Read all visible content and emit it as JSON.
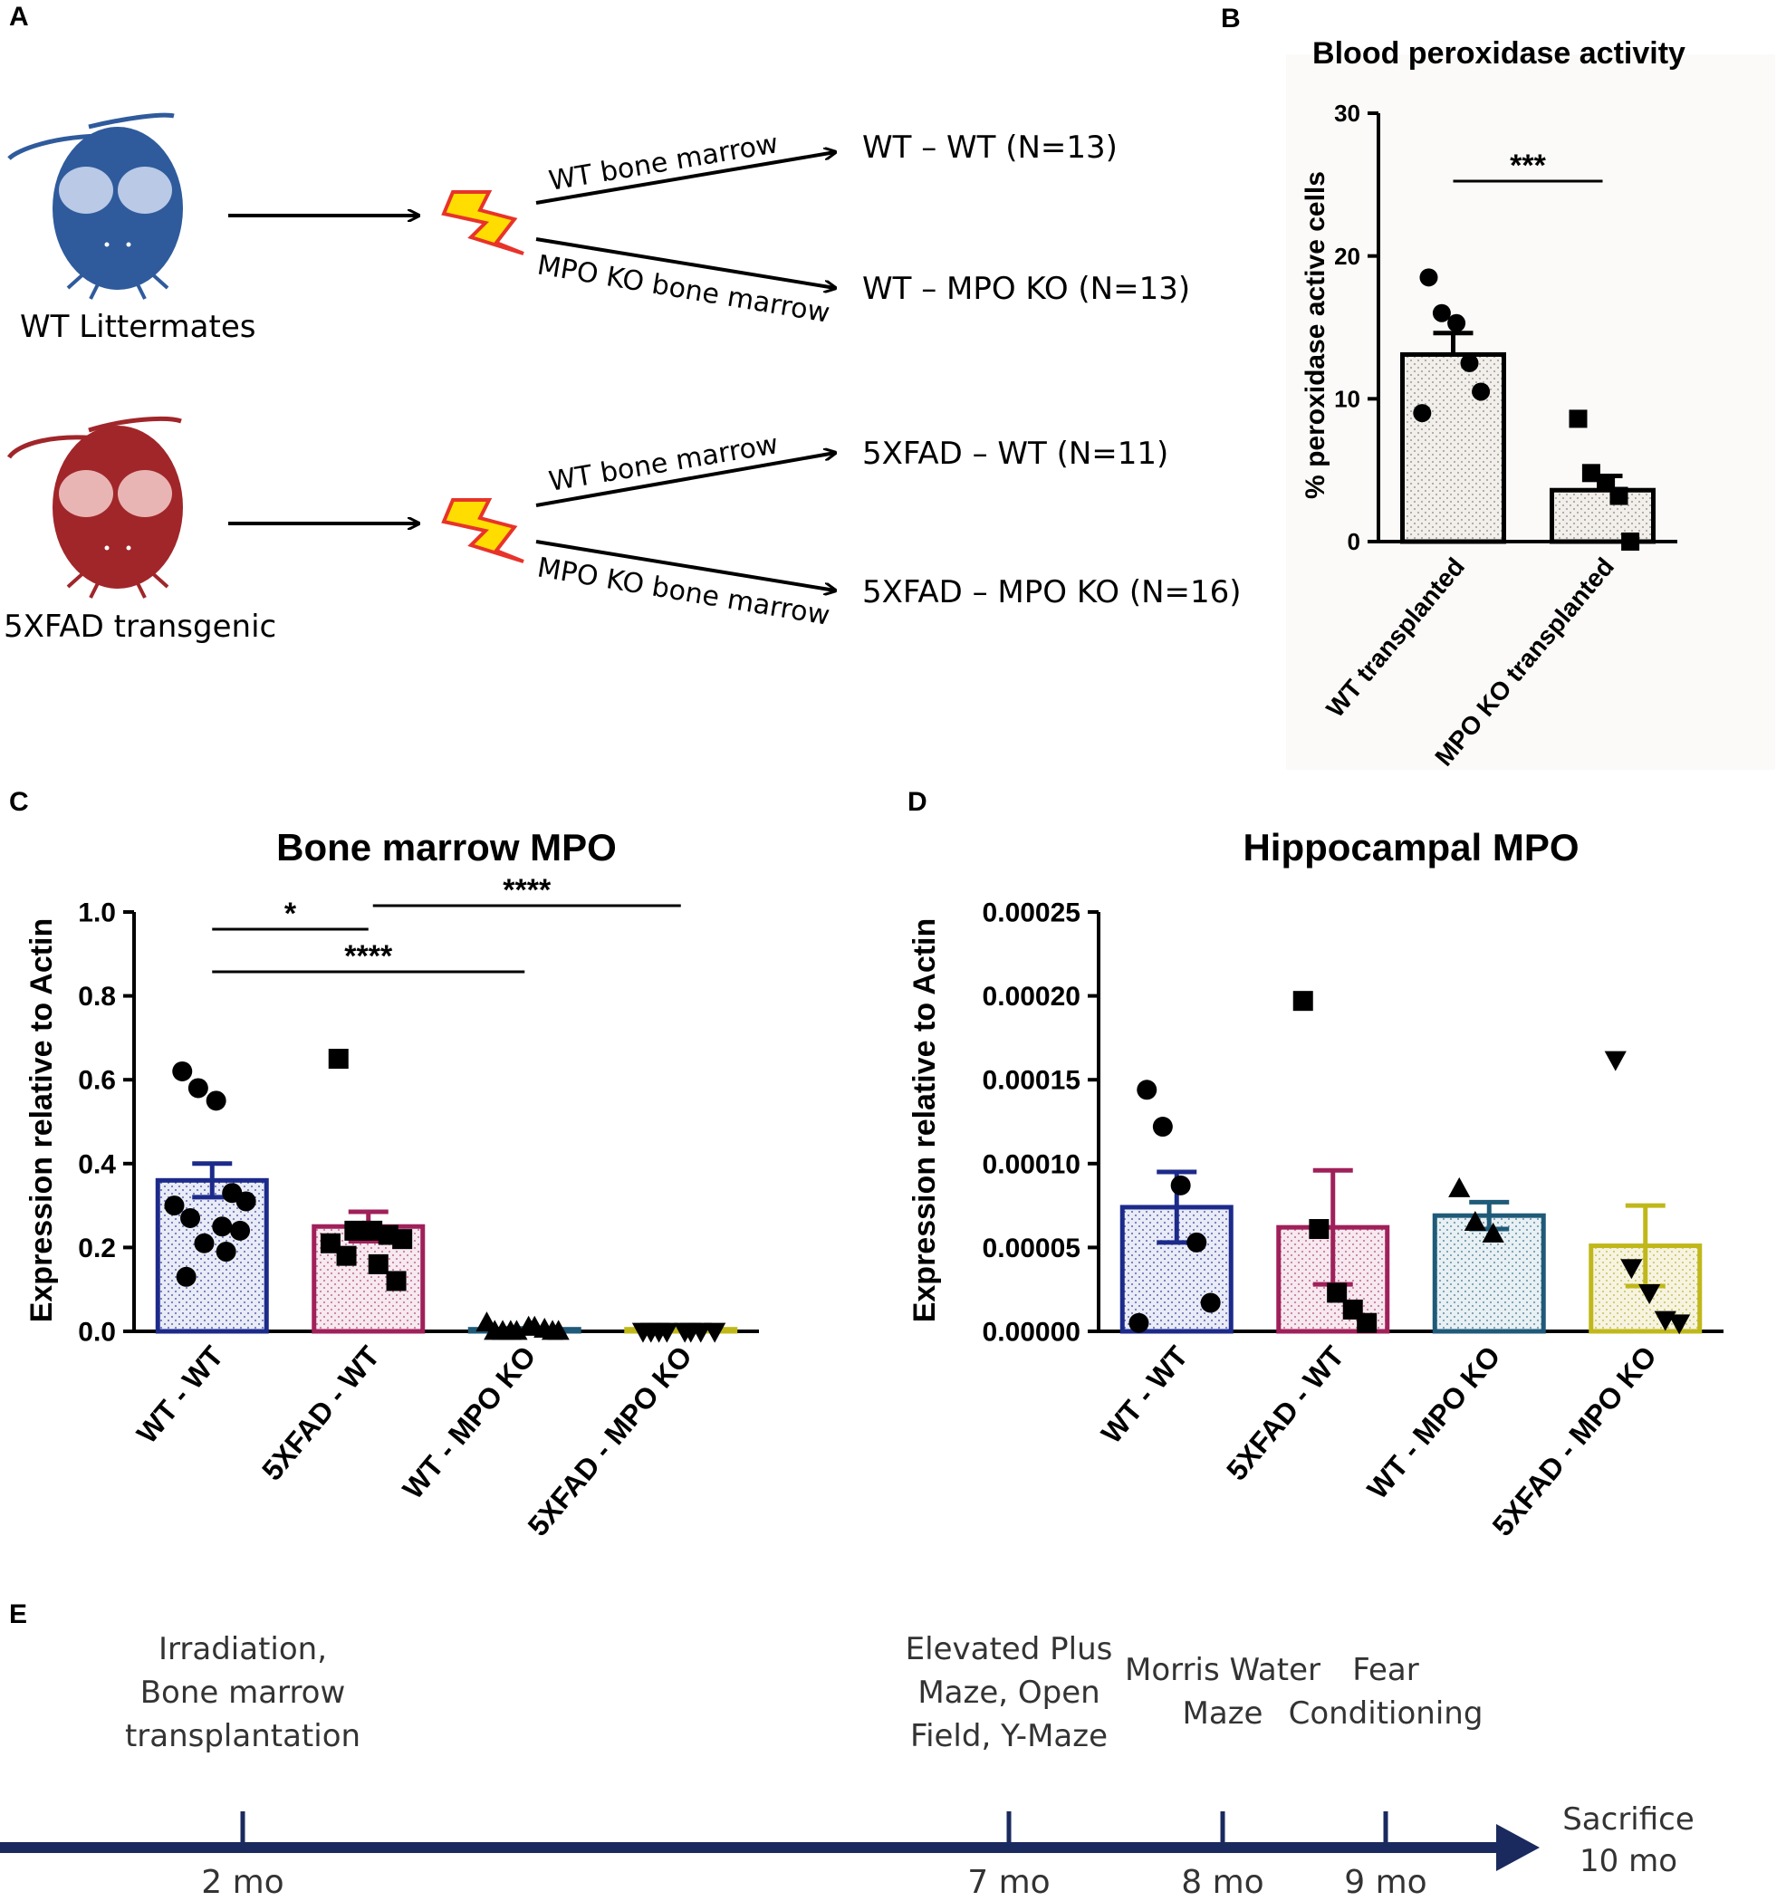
{
  "panels": {
    "a": "A",
    "b": "B",
    "c": "C",
    "d": "D",
    "e": "E"
  },
  "schematic": {
    "mouse_wt_label": "WT Littermates",
    "mouse_tg_label": "5XFAD transgenic",
    "wt_bone_marrow": "WT bone marrow",
    "mpo_bone_marrow": "MPO KO bone marrow",
    "groups": [
      "WT – WT (N=13)",
      "WT – MPO KO (N=13)",
      "5XFAD – WT (N=11)",
      "5XFAD – MPO KO (N=16)"
    ],
    "colors": {
      "wt_mouse": "#2f5b9c",
      "tg_mouse": "#a0262a",
      "lightning": "#ffdd00",
      "lightning_edge": "#e8332a"
    }
  },
  "chart_data": [
    {
      "id": "B",
      "type": "bar",
      "title": "Blood peroxidase activity",
      "xlabel": "",
      "ylabel": "% peroxidase active cells",
      "ylim": [
        0,
        30
      ],
      "yticks": [
        0,
        10,
        20,
        30
      ],
      "ytick_labels": [
        "0",
        "10",
        "20",
        "30"
      ],
      "categories": [
        "WT transplanted",
        "MPO KO transplanted"
      ],
      "values": [
        13.1,
        3.6
      ],
      "sem": [
        1.5,
        1.0
      ],
      "points": [
        [
          18.5,
          16.0,
          15.3,
          12.5,
          10.5,
          9.0
        ],
        [
          8.6,
          4.8,
          4.1,
          3.2,
          0.0
        ]
      ],
      "markers": [
        "circle",
        "square"
      ],
      "colors": [
        "#000000",
        "#000000"
      ],
      "significance": [
        {
          "from": 0,
          "to": 1,
          "label": "***"
        }
      ]
    },
    {
      "id": "C",
      "type": "bar",
      "title": "Bone marrow MPO",
      "xlabel": "",
      "ylabel": "Expression relative to Actin",
      "ylim": [
        0,
        1.0
      ],
      "yticks": [
        0,
        0.2,
        0.4,
        0.6,
        0.8,
        1.0
      ],
      "ytick_labels": [
        "0.0",
        "0.2",
        "0.4",
        "0.6",
        "0.8",
        "1.0"
      ],
      "categories": [
        "WT - WT",
        "5XFAD - WT",
        "WT - MPO KO",
        "5XFAD - MPO KO"
      ],
      "values": [
        0.36,
        0.25,
        0.005,
        0.005
      ],
      "sem": [
        0.04,
        0.035,
        0.002,
        0.001
      ],
      "points": [
        [
          0.62,
          0.58,
          0.55,
          0.33,
          0.31,
          0.3,
          0.27,
          0.25,
          0.24,
          0.21,
          0.19,
          0.13
        ],
        [
          0.65,
          0.24,
          0.24,
          0.23,
          0.22,
          0.21,
          0.18,
          0.16,
          0.12
        ],
        [
          0.0,
          0.0,
          0.01,
          0.005,
          0.0,
          0.02,
          0.0,
          0.01,
          0.0,
          0.0
        ],
        [
          0.0,
          0.0,
          0.0,
          0.0,
          0.0,
          0.0,
          0.0,
          0.0
        ]
      ],
      "markers": [
        "circle",
        "square",
        "triangle",
        "triangle-down"
      ],
      "colors": [
        "#1c2a8a",
        "#a0205a",
        "#1f5a78",
        "#c0b81a"
      ],
      "significance": [
        {
          "from": 0,
          "to": 1,
          "label": "*"
        },
        {
          "from": 0,
          "to": 2,
          "label": "****"
        },
        {
          "from": 1,
          "to": 3,
          "label": "****"
        }
      ]
    },
    {
      "id": "D",
      "type": "bar",
      "title": "Hippocampal MPO",
      "xlabel": "",
      "ylabel": "Expression relative to Actin",
      "ylim": [
        0,
        0.00025
      ],
      "yticks": [
        0,
        5e-05,
        0.0001,
        0.00015,
        0.0002,
        0.00025
      ],
      "ytick_labels": [
        "0.00000",
        "0.00005",
        "0.00010",
        "0.00015",
        "0.00020",
        "0.00025"
      ],
      "categories": [
        "WT - WT",
        "5XFAD - WT",
        "WT - MPO KO",
        "5XFAD - MPO KO"
      ],
      "values": [
        7.4e-05,
        6.2e-05,
        6.9e-05,
        5.1e-05
      ],
      "sem": [
        2.1e-05,
        3.4e-05,
        8e-06,
        2.4e-05
      ],
      "points": [
        [
          0.000144,
          0.000122,
          8.7e-05,
          5.3e-05,
          1.7e-05,
          5e-06
        ],
        [
          0.000197,
          6.1e-05,
          2.3e-05,
          1.3e-05,
          5e-06
        ],
        [
          8.5e-05,
          6.5e-05,
          5.8e-05
        ],
        [
          0.000162,
          3.8e-05,
          2.3e-05,
          7e-06,
          5e-06
        ]
      ],
      "markers": [
        "circle",
        "square",
        "triangle",
        "triangle-down"
      ],
      "colors": [
        "#1c2a8a",
        "#a0205a",
        "#1f5a78",
        "#c0b81a"
      ],
      "significance": []
    }
  ],
  "timeline": {
    "events": [
      {
        "label_lines": [
          "Irradiation,",
          "Bone marrow",
          "transplantation"
        ],
        "time": "2 mo",
        "month": 2
      },
      {
        "label_lines": [
          "Elevated Plus",
          "Maze, Open",
          "Field, Y-Maze"
        ],
        "time": "7 mo",
        "month": 7
      },
      {
        "label_lines": [
          "Morris  Water",
          "Maze"
        ],
        "time": "8 mo",
        "month": 8
      },
      {
        "label_lines": [
          "Fear",
          "Conditioning"
        ],
        "time": "9 mo",
        "month": 9
      }
    ],
    "end_label": [
      "Sacrifice",
      "10 mo"
    ],
    "color": "#1a2a5e"
  }
}
